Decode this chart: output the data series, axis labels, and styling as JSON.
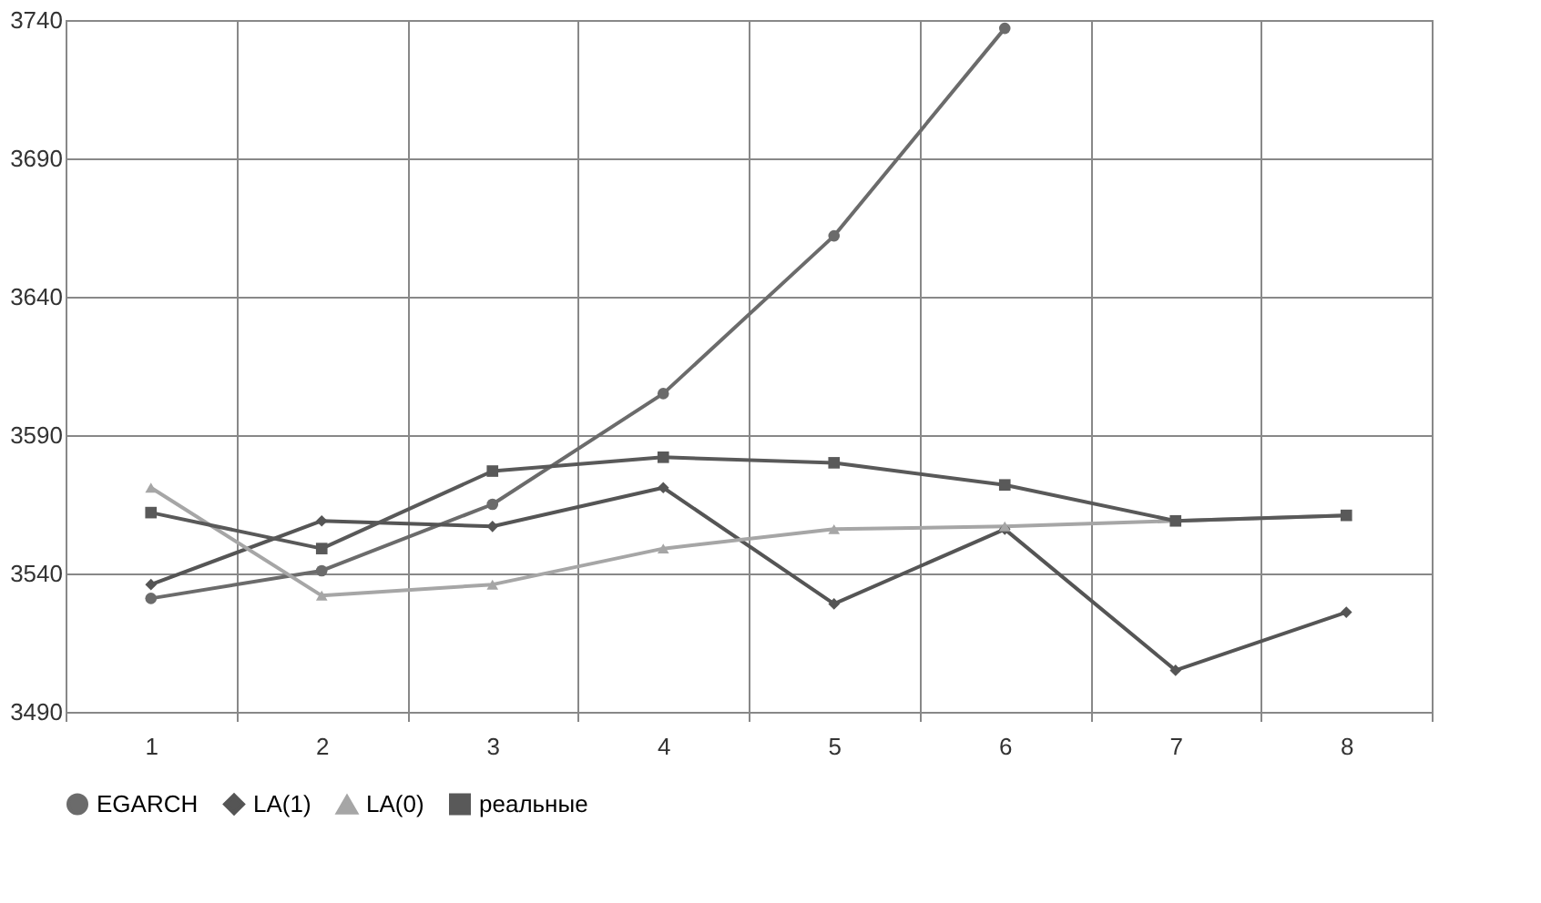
{
  "chart_data": {
    "type": "line",
    "categories": [
      "1",
      "2",
      "3",
      "4",
      "5",
      "6",
      "7",
      "8"
    ],
    "ylim": [
      3490,
      3740
    ],
    "yticks": [
      3490,
      3540,
      3590,
      3640,
      3690,
      3740
    ],
    "grid": true,
    "legend": "bottom",
    "line_style": "solid",
    "series": [
      {
        "name": "EGARCH",
        "color": "#6b6b6b",
        "marker": "circle",
        "values": [
          3531,
          3541,
          3565,
          3605,
          3662,
          3737,
          null,
          null
        ]
      },
      {
        "name": "LA(1)",
        "color": "#555555",
        "marker": "diamond",
        "values": [
          3536,
          3559,
          3557,
          3571,
          3529,
          3556,
          3505,
          3526
        ]
      },
      {
        "name": "LA(0)",
        "color": "#a6a6a6",
        "marker": "triangle",
        "values": [
          3571,
          3532,
          3536,
          3549,
          3556,
          3557,
          3559,
          3561
        ]
      },
      {
        "name": "реальные",
        "color": "#595959",
        "marker": "square",
        "values": [
          3562,
          3549,
          3577,
          3582,
          3580,
          3572,
          3559,
          3561
        ]
      }
    ]
  }
}
